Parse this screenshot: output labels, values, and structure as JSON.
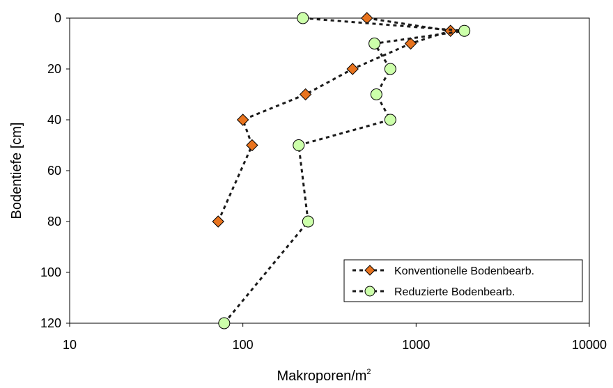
{
  "chart_data": {
    "type": "scatter",
    "xlabel": "Makroporen/m",
    "xlabel_sup": "2",
    "ylabel": "Bodentiefe [cm]",
    "x_scale": "log",
    "xlim": [
      10,
      10000
    ],
    "ylim": [
      0,
      120
    ],
    "y_inverted": true,
    "x_ticks": [
      "10",
      "100",
      "1000",
      "10000"
    ],
    "y_ticks": [
      "0",
      "20",
      "40",
      "60",
      "80",
      "100",
      "120"
    ],
    "grid": false,
    "legend_position": "bottom-right",
    "series": [
      {
        "name": "Konventionelle Bodenbearb.",
        "marker": "diamond",
        "color": "#E8731E",
        "line": "dashed",
        "points": [
          {
            "x": 520,
            "y": 0
          },
          {
            "x": 1580,
            "y": 5
          },
          {
            "x": 930,
            "y": 10
          },
          {
            "x": 430,
            "y": 20
          },
          {
            "x": 230,
            "y": 30
          },
          {
            "x": 100,
            "y": 40
          },
          {
            "x": 113,
            "y": 50
          },
          {
            "x": 72,
            "y": 80
          }
        ]
      },
      {
        "name": "Reduzierte Bodenbearb.",
        "marker": "circle",
        "color": "#CCFFAA",
        "line": "dashed",
        "points": [
          {
            "x": 222,
            "y": 0
          },
          {
            "x": 1900,
            "y": 5
          },
          {
            "x": 575,
            "y": 10
          },
          {
            "x": 710,
            "y": 20
          },
          {
            "x": 590,
            "y": 30
          },
          {
            "x": 710,
            "y": 40
          },
          {
            "x": 210,
            "y": 50
          },
          {
            "x": 238,
            "y": 80
          },
          {
            "x": 78,
            "y": 120
          }
        ]
      }
    ]
  }
}
